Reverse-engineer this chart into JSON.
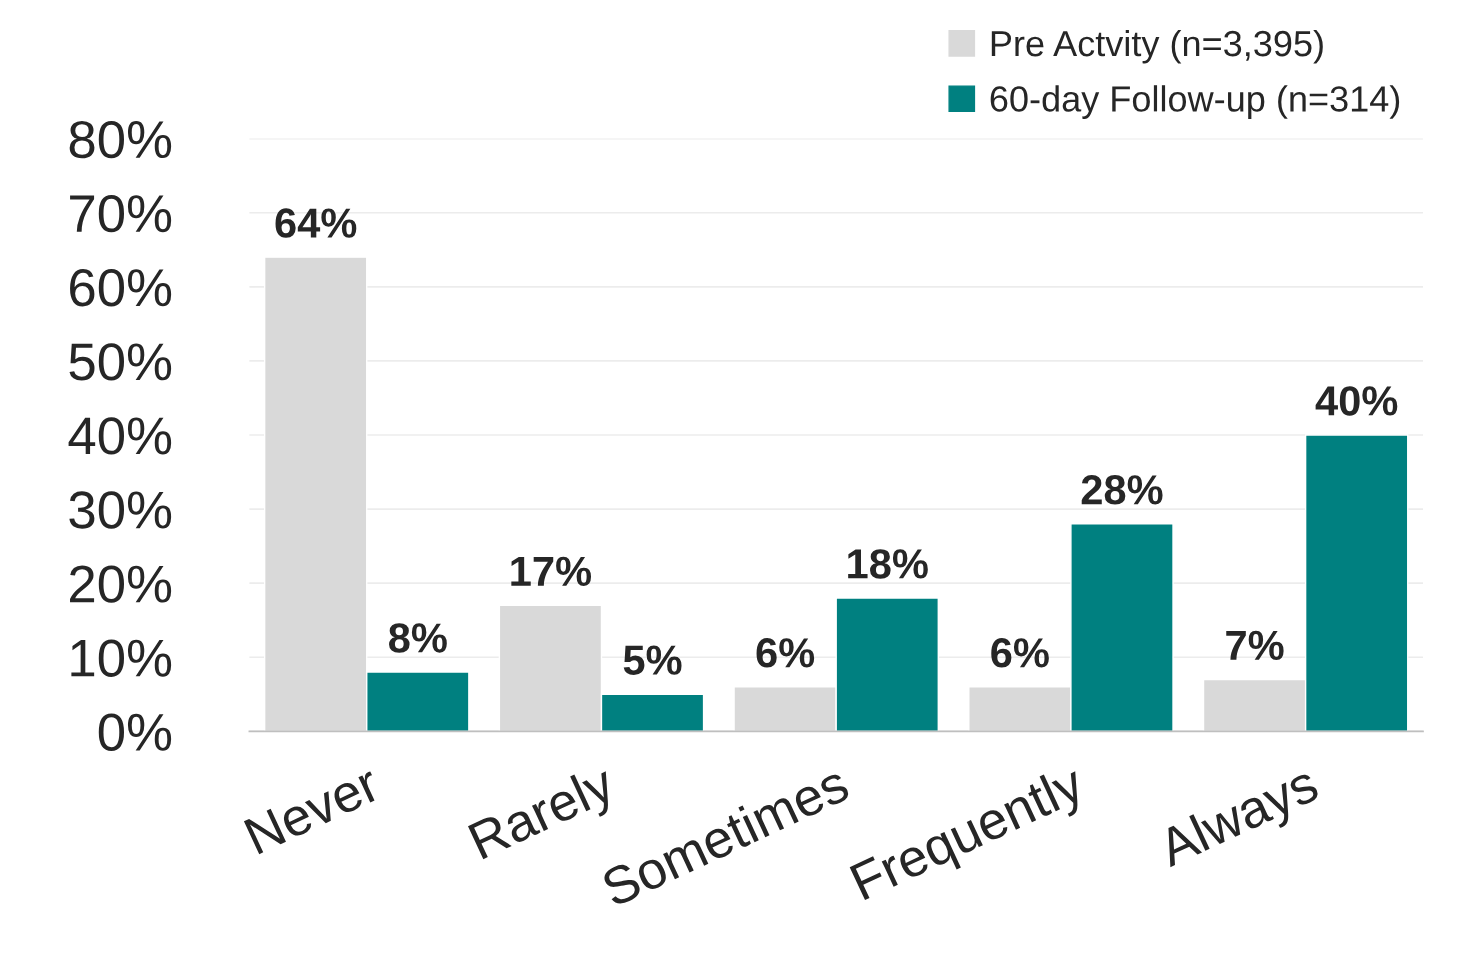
{
  "chart_data": {
    "type": "bar",
    "categories": [
      "Never",
      "Rarely",
      "Sometimes",
      "Frequently",
      "Always"
    ],
    "series": [
      {
        "name": "Pre Actvity (n=3,395)",
        "color": "#d9d9d9",
        "values": [
          64,
          17,
          6,
          6,
          7
        ],
        "value_labels": [
          "64%",
          "17%",
          "6%",
          "6%",
          "7%"
        ]
      },
      {
        "name": "60-day Follow-up (n=314)",
        "color": "#008080",
        "values": [
          8,
          5,
          18,
          28,
          40
        ],
        "value_labels": [
          "8%",
          "5%",
          "18%",
          "28%",
          "40%"
        ]
      }
    ],
    "ylim": [
      0,
      80
    ],
    "yticks": [
      {
        "value": 0,
        "label": "0%"
      },
      {
        "value": 10,
        "label": "10%"
      },
      {
        "value": 20,
        "label": "20%"
      },
      {
        "value": 30,
        "label": "30%"
      },
      {
        "value": 40,
        "label": "40%"
      },
      {
        "value": 50,
        "label": "50%"
      },
      {
        "value": 60,
        "label": "60%"
      },
      {
        "value": 70,
        "label": "70%"
      },
      {
        "value": 80,
        "label": "80%"
      }
    ],
    "grid": "y",
    "legend": "top right"
  }
}
